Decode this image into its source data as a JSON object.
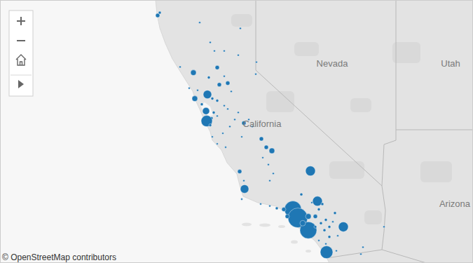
{
  "chart_data": {
    "type": "bubble_map",
    "annotations": [
      "Nevada",
      "California",
      "Utah",
      "Arizona",
      "© OpenStreetMap contributors"
    ],
    "x": [
      -124.2,
      -124.11,
      -122.4,
      -120.66,
      -121.95,
      -121.77,
      -121.35,
      -120.75,
      -119.97,
      -120.0,
      -123.24,
      -122.67,
      -121.65,
      -122.01,
      -121.56,
      -121.2,
      -121.35,
      -121.05,
      -122.85,
      -122.49,
      -122.07,
      -121.86,
      -122.61,
      -122.31,
      -121.65,
      -121.35,
      -122.13,
      -121.8,
      -121.89,
      -122.1,
      -121.95,
      -121.65,
      -121.2,
      -120.75,
      -120.9,
      -120.51,
      -121.86,
      -121.65,
      -121.41,
      -121.29,
      -121.11,
      -120.6,
      -120.3,
      -120.15,
      -119.76,
      -119.55,
      -119.31,
      -119.7,
      -119.46,
      -119.25,
      -119.4,
      -120.69,
      -120.51,
      -120.48,
      -120.6,
      -117.66,
      -118.05,
      -117.36,
      -117.15,
      -117.6,
      -118.41,
      -118.2,
      -118.8,
      -119.1,
      -119.4,
      -119.79,
      -118.65,
      -117.75,
      -117.45,
      -117.21,
      -117.0,
      -116.85,
      -116.61,
      -116.7,
      -116.25,
      -116.49,
      -116.85,
      -117.0,
      -117.3,
      -116.97,
      -116.55,
      -115.41,
      -115.5,
      -114.51,
      -117.3,
      -117.75,
      -117.99,
      -117.45,
      -117.06
    ],
    "values": [
      40.8,
      40.89,
      40.57,
      40.38,
      39.92,
      39.64,
      39.64,
      39.5,
      39.27,
      38.87,
      39.11,
      38.92,
      39.09,
      38.76,
      38.52,
      38.57,
      38.8,
      38.29,
      38.4,
      38.33,
      38.19,
      38.05,
      38.05,
      37.86,
      37.98,
      37.81,
      37.63,
      37.58,
      37.39,
      37.29,
      37.15,
      37.46,
      37.7,
      37.58,
      37.34,
      37.22,
      36.75,
      36.51,
      36.87,
      36.39,
      37.1,
      36.75,
      37.34,
      37.1,
      36.68,
      36.39,
      36.27,
      36.03,
      35.79,
      35.48,
      35.23,
      35.55,
      35.23,
      34.94,
      34.58,
      35.57,
      34.75,
      34.51,
      34.41,
      34.46,
      34.22,
      33.92,
      34.22,
      34.26,
      34.34,
      34.41,
      33.97,
      33.48,
      33.97,
      33.73,
      33.85,
      33.6,
      34.09,
      33.78,
      33.6,
      33.28,
      33.24,
      32.99,
      33.11,
      32.69,
      32.74,
      32.87,
      32.62,
      33.6,
      34.22,
      33.97,
      33.73,
      33.6,
      33.48
    ],
    "size": [
      9,
      4,
      2,
      2,
      2,
      2,
      2,
      2,
      2,
      2,
      2,
      16,
      9,
      4,
      9,
      9,
      2,
      2,
      2,
      2,
      36,
      4,
      16,
      4,
      4,
      2,
      25,
      4,
      4,
      64,
      4,
      2,
      2,
      2,
      2,
      9,
      2,
      2,
      2,
      2,
      2,
      2,
      2,
      2,
      9,
      9,
      16,
      2,
      2,
      2,
      2,
      9,
      2,
      36,
      2,
      49,
      4,
      49,
      4,
      2,
      144,
      196,
      9,
      4,
      2,
      2,
      9,
      144,
      9,
      4,
      4,
      4,
      4,
      2,
      49,
      2,
      4,
      2,
      2,
      81,
      2,
      2,
      2,
      2,
      4,
      16,
      16,
      4,
      4
    ],
    "xlim": [
      -130.95,
      -110.7
    ],
    "ylim": [
      32.3,
      41.3
    ],
    "tick_labels": false,
    "color": "#1f77b4"
  }
}
